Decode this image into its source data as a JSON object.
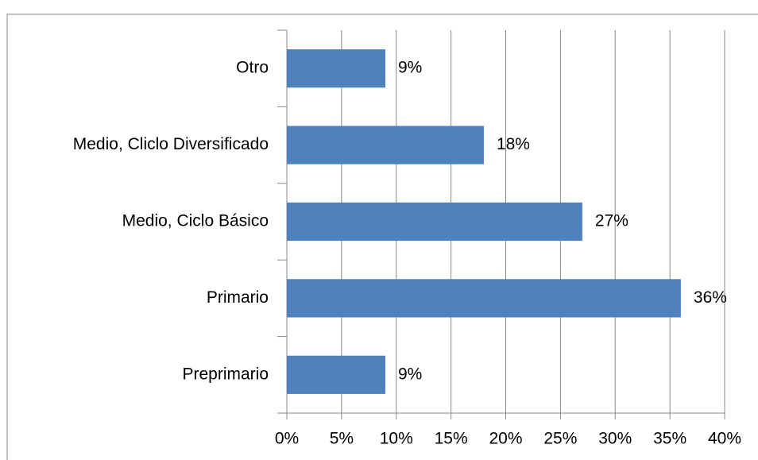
{
  "chart_data": {
    "type": "bar",
    "orientation": "horizontal",
    "categories": [
      "Otro",
      "Medio, Cliclo Diversificado",
      "Medio, Ciclo Básico",
      "Primario",
      "Preprimario"
    ],
    "values": [
      9,
      18,
      27,
      36,
      9
    ],
    "value_labels": [
      "9%",
      "18%",
      "27%",
      "36%",
      "9%"
    ],
    "color": "#4f81bd",
    "xlim": [
      0,
      40
    ],
    "xticks": [
      {
        "value": 0,
        "label": "0%"
      },
      {
        "value": 5,
        "label": "5%"
      },
      {
        "value": 10,
        "label": "10%"
      },
      {
        "value": 15,
        "label": "15%"
      },
      {
        "value": 20,
        "label": "20%"
      },
      {
        "value": 25,
        "label": "25%"
      },
      {
        "value": 30,
        "label": "30%"
      },
      {
        "value": 35,
        "label": "35%"
      },
      {
        "value": 40,
        "label": "40%"
      }
    ],
    "grid": true
  }
}
